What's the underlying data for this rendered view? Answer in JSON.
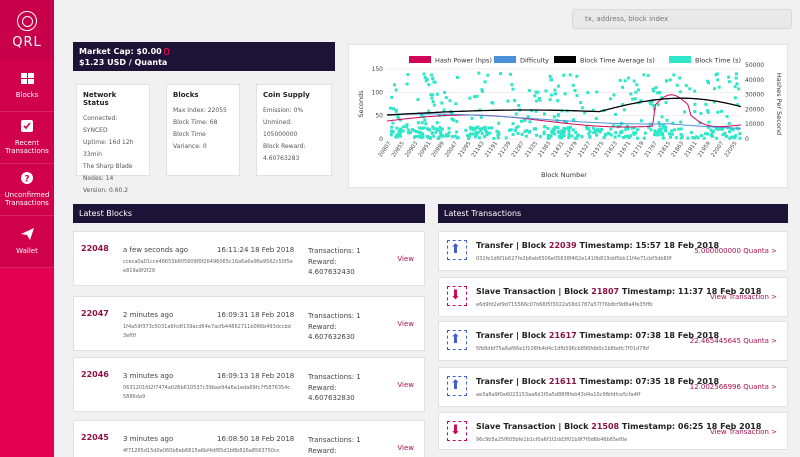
{
  "brand": {
    "name": "QRL"
  },
  "nav": [
    {
      "label": "Blocks",
      "icon": "blocks-icon"
    },
    {
      "label": "Recent Transactions",
      "icon": "check-icon"
    },
    {
      "label": "Unconfirmed Transactions",
      "icon": "question-icon"
    },
    {
      "label": "Wallet",
      "icon": "paper-plane-icon"
    }
  ],
  "search": {
    "placeholder": "tx, address, block index"
  },
  "market": {
    "cap": "Market Cap: $0.00",
    "price": "$1.23 USD / Quanta"
  },
  "network": {
    "title": "Network Status",
    "lines": [
      "Connected: SYNCED",
      "Uptime: 16d 12h",
      "33min",
      "The Sharp Blade",
      "Nodes: 14",
      "Version: 0.60.2"
    ]
  },
  "blocks_card": {
    "title": "Blocks",
    "lines": [
      "Max Index: 22055",
      "Block Time: 68",
      "Block Time Variance: 0"
    ]
  },
  "supply": {
    "title": "Coin Supply",
    "lines": [
      "Emission: 0%",
      "Unmined: 105000000",
      "Block Reward:",
      "4.60763283"
    ]
  },
  "colors": {
    "accent": "#e4004f",
    "dark": "#1d1336",
    "blue": "#3f5fc9",
    "teal": "#2ee6c8"
  },
  "chart_data": {
    "type": "line",
    "series": [
      {
        "name": "Hash Power (hps)",
        "color": "#d10457"
      },
      {
        "name": "Difficulty",
        "color": "#4a90d9"
      },
      {
        "name": "Block Time Average (s)",
        "color": "#000000"
      },
      {
        "name": "Block Time (s)",
        "color": "#2ee6c8"
      }
    ],
    "ylabel_left": "Seconds",
    "ylabel_right": "Hashes Per Second",
    "xlabel": "Block Number",
    "left_ticks": [
      "150",
      "100",
      "50",
      "0"
    ],
    "right_ticks": [
      "50000",
      "40000",
      "30000",
      "20000",
      "10000",
      "0"
    ],
    "x_ticks": [
      "20807",
      "20855",
      "20903",
      "20951",
      "20999",
      "20047",
      "21095",
      "21143",
      "21191",
      "21239",
      "21287",
      "21335",
      "21383",
      "21431",
      "21479",
      "21527",
      "21575",
      "21623",
      "21671",
      "21719",
      "21767",
      "21815",
      "21863",
      "21911",
      "21959",
      "22007",
      "22055"
    ],
    "ylim": [
      0,
      150
    ],
    "y2lim": [
      0,
      50000
    ]
  },
  "latest_blocks": {
    "title": "Latest Blocks",
    "items": [
      {
        "number": "22048",
        "ago": "a few seconds ago",
        "time": "16:11:24 18 Feb 2018",
        "tx": "Transactions: 1",
        "reward_label": "Reward:",
        "reward": "4.607632430",
        "hash": "cceca0a01cce48653b805609f0f26496065c16a6a6e96a9562c50f5ee819a9f2f29",
        "view": "View"
      },
      {
        "number": "22047",
        "ago": "2 minutes ago",
        "time": "16:09:31 18 Feb 2018",
        "tx": "Transactions: 1",
        "reward_label": "Reward:",
        "reward": "4.607632630",
        "hash": "1f4a59f373c5031a6fcdf159acd64e7acfb44862711b066b493dccbd3ef0f",
        "view": "View"
      },
      {
        "number": "22046",
        "ago": "3 minutes ago",
        "time": "16:09:13 18 Feb 2018",
        "tx": "Transactions: 1",
        "reward_label": "Reward:",
        "reward": "4.607632830",
        "hash": "0631201fd2f7474a026b610537c39bae94a6a1eda69fc7f5876354c5886da9",
        "view": "View"
      },
      {
        "number": "22045",
        "ago": "3 minutes ago",
        "time": "16:08:50 18 Feb 2018",
        "tx": "Transactions: 1",
        "reward_label": "Reward:",
        "reward": "",
        "hash": "4f71265d15d0e060b6eb6815a6bf4df85d1b8b826a8563750cc",
        "view": "View"
      }
    ]
  },
  "latest_tx": {
    "title": "Latest Transactions",
    "items": [
      {
        "kind": "up",
        "type": "Transfer | Block ",
        "block": "22039",
        "ts": " Timestamp: 15:57 18 Feb 2018",
        "hash": "031fe1d6f1b627fe2b6eb6506e05638f462e1410b819dd5bb11f4e71cbf3db80f",
        "amount": "5.000000000 Quanta >"
      },
      {
        "kind": "down",
        "type": "Slave Transaction | Block ",
        "block": "21807",
        "ts": " Timestamp: 11:37 18 Feb 2018",
        "hash": "e6d9fd2ef9d715566c07b66f5f3022a58d1787a57f76b8cf9d8a4fe35ffb",
        "amount": "View Transaction >"
      },
      {
        "kind": "up",
        "type": "Transfer | Block ",
        "block": "21617",
        "ts": " Timestamp: 07:38 18 Feb 2018",
        "hash": "5fb8dbf75a6af66e1f108fb4d4c1dfb596cb890fdb0c1b8bdfc7f01d7fbf",
        "amount": "22.465445645 Quanta >"
      },
      {
        "kind": "up",
        "type": "Transfer | Block ",
        "block": "21611",
        "ts": " Timestamp: 07:35 18 Feb 2018",
        "hash": "ae3a8a9f0a6023153aa6d1f0a5d88f8feb43d4a10c9fbfdfce5cfa4ff",
        "amount": "12.002566996 Quanta >"
      },
      {
        "kind": "down",
        "type": "Slave Transaction | Block ",
        "block": "21508",
        "ts": " Timestamp: 06:25 18 Feb 2018",
        "hash": "96c9b5a25f605bfe1b1cf0a6f1f2dd3f01b9f7f0d6b46b65ef0e",
        "amount": "View Transaction >"
      }
    ]
  }
}
